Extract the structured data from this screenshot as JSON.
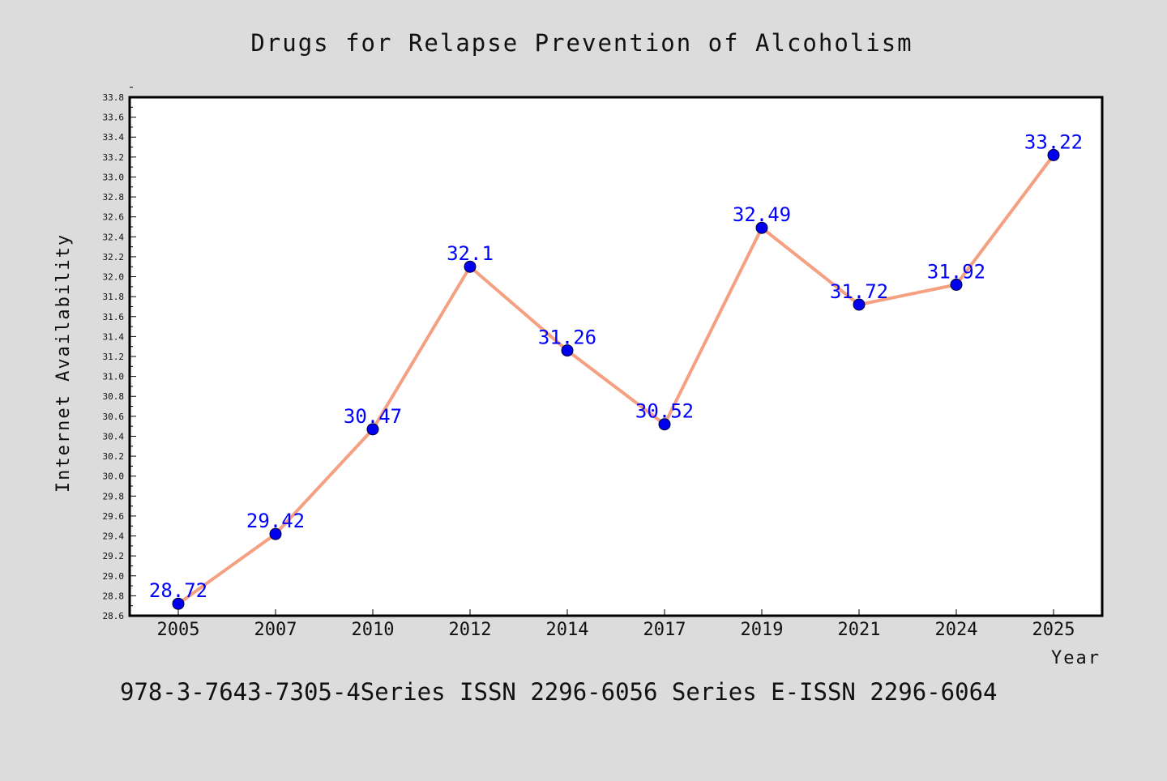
{
  "chart_data": {
    "type": "line",
    "title": "Drugs for Relapse Prevention of Alcoholism",
    "xlabel": "Year",
    "ylabel": "Internet Availability",
    "categories": [
      "2005",
      "2007",
      "2010",
      "2012",
      "2014",
      "2017",
      "2019",
      "2021",
      "2024",
      "2025"
    ],
    "series": [
      {
        "values": [
          28.72,
          29.42,
          30.47,
          32.1,
          31.26,
          30.52,
          32.49,
          31.72,
          31.92,
          33.22
        ]
      }
    ],
    "data_labels": [
      "28.72",
      "29.42",
      "30.47",
      "32.1",
      "31.26",
      "30.52",
      "32.49",
      "31.72",
      "31.92",
      "33.22"
    ],
    "ylim": [
      28.6,
      33.8
    ],
    "ytick_step": 0.2,
    "line_color": "#f4a081",
    "marker_color": "#0000ee",
    "label_color": "#0000ff",
    "grid": false
  },
  "footer_text": "978-3-7643-7305-4Series ISSN 2296-6056 Series E-ISSN 2296-6064"
}
